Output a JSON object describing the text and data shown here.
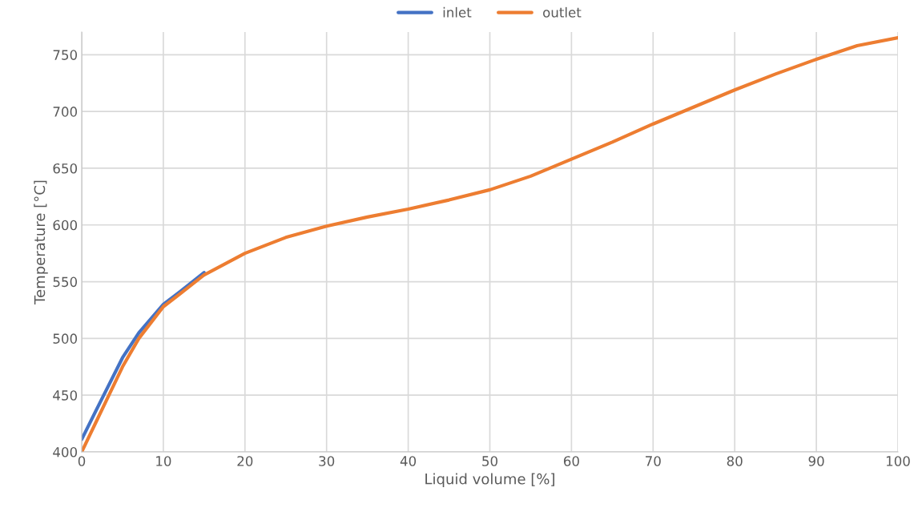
{
  "chart_data": {
    "type": "line",
    "xlabel": "Liquid volume [%]",
    "ylabel": "Temperature [°C]",
    "xlim": [
      0,
      100
    ],
    "xticks": [
      0,
      10,
      20,
      30,
      40,
      50,
      60,
      70,
      80,
      90,
      100
    ],
    "ylim": [
      400,
      770
    ],
    "yticks": [
      400,
      450,
      500,
      550,
      600,
      650,
      700,
      750
    ],
    "grid": true,
    "legend": "top",
    "line_style": "solid",
    "marker": "none",
    "series": [
      {
        "name": "inlet",
        "color": "#4472c4",
        "x": [
          0,
          2,
          5,
          7,
          10,
          12,
          15
        ],
        "values": [
          411,
          440,
          483,
          505,
          530,
          541,
          558
        ]
      },
      {
        "name": "outlet",
        "color": "#ed7d31",
        "x": [
          0,
          2,
          5,
          7,
          10,
          12,
          15,
          20,
          25,
          30,
          35,
          40,
          45,
          50,
          55,
          60,
          65,
          70,
          75,
          80,
          85,
          90,
          95,
          100
        ],
        "values": [
          400,
          430,
          475,
          500,
          528,
          539,
          556,
          575,
          589,
          599,
          607,
          614,
          622,
          631,
          643,
          658,
          673,
          689,
          704,
          719,
          733,
          746,
          758,
          765
        ]
      }
    ]
  }
}
